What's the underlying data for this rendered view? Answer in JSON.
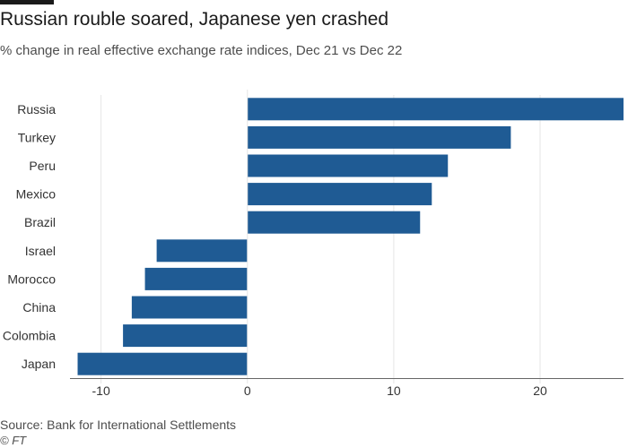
{
  "header": {
    "title": "Russian rouble soared, Japanese yen crashed",
    "subtitle": "% change in real effective exchange rate indices, Dec 21 vs Dec 22"
  },
  "footer": {
    "source": "Source: Bank for International Settlements",
    "credit": "© FT"
  },
  "colors": {
    "bar": "#1f5b94",
    "grid": "#e6e6e6",
    "axis": "#666666",
    "text": "#333333"
  },
  "chart_data": {
    "type": "bar",
    "orientation": "horizontal",
    "title": "Russian rouble soared, Japanese yen crashed",
    "subtitle": "% change in real effective exchange rate indices, Dec 21 vs Dec 22",
    "categories": [
      "Russia",
      "Turkey",
      "Peru",
      "Mexico",
      "Brazil",
      "Israel",
      "Morocco",
      "China",
      "Colombia",
      "Japan"
    ],
    "values": [
      25.7,
      18.0,
      13.7,
      12.6,
      11.8,
      -6.2,
      -7.0,
      -7.9,
      -8.5,
      -11.6
    ],
    "xlim": [
      -12,
      25.7
    ],
    "xticks": [
      -10,
      0,
      10,
      20
    ],
    "grid": true
  }
}
